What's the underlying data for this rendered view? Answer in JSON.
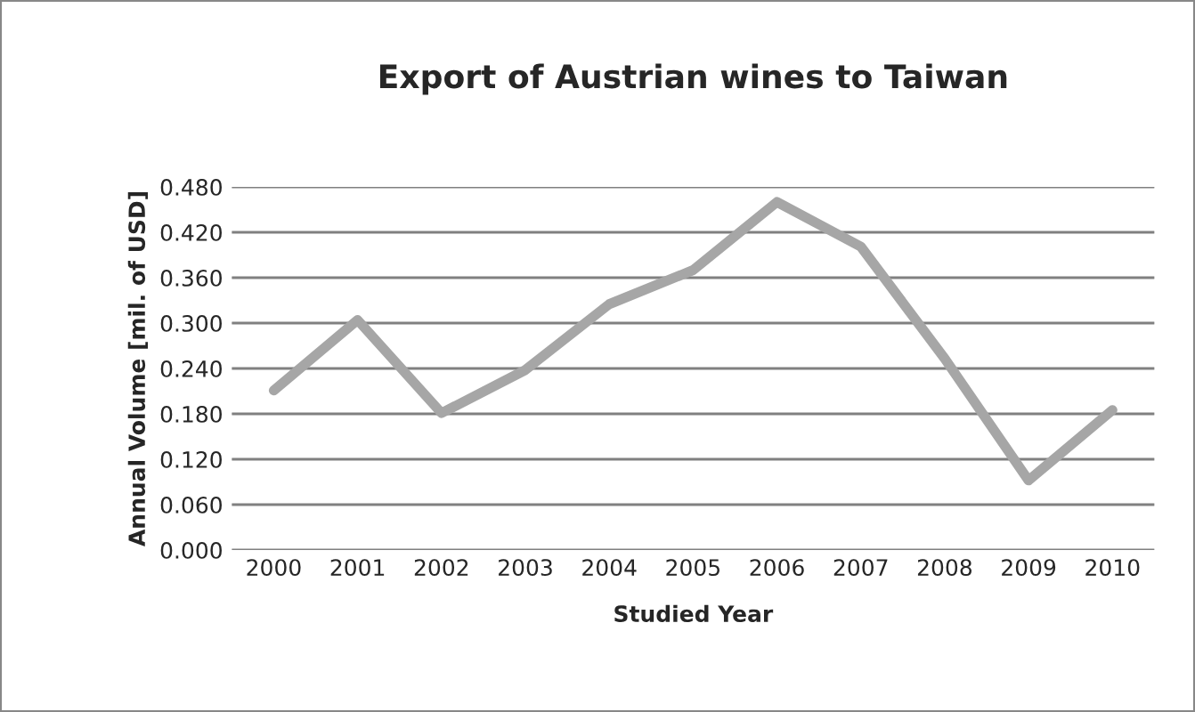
{
  "chart_data": {
    "type": "line",
    "title": "Export of Austrian wines to Taiwan",
    "xlabel": "Studied Year",
    "ylabel": "Annual Volume [mil. of USD]",
    "categories": [
      "2000",
      "2001",
      "2002",
      "2003",
      "2004",
      "2005",
      "2006",
      "2007",
      "2008",
      "2009",
      "2010"
    ],
    "series": [
      {
        "color": "#a6a6a6",
        "values": [
          0.211,
          0.304,
          0.181,
          0.238,
          0.325,
          0.37,
          0.46,
          0.401,
          0.253,
          0.092,
          0.185
        ]
      }
    ],
    "ylim": [
      0,
      0.48
    ],
    "yticks": [
      {
        "value": 0,
        "label": "0.000"
      },
      {
        "value": 0.06,
        "label": "0.060"
      },
      {
        "value": 0.12,
        "label": "0.120"
      },
      {
        "value": 0.18,
        "label": "0.180"
      },
      {
        "value": 0.24,
        "label": "0.240"
      },
      {
        "value": 0.3,
        "label": "0.300"
      },
      {
        "value": 0.36,
        "label": "0.360"
      },
      {
        "value": 0.42,
        "label": "0.420"
      },
      {
        "value": 0.48,
        "label": "0.480"
      }
    ],
    "grid": "y",
    "marker": "none",
    "line_style": "solid"
  }
}
